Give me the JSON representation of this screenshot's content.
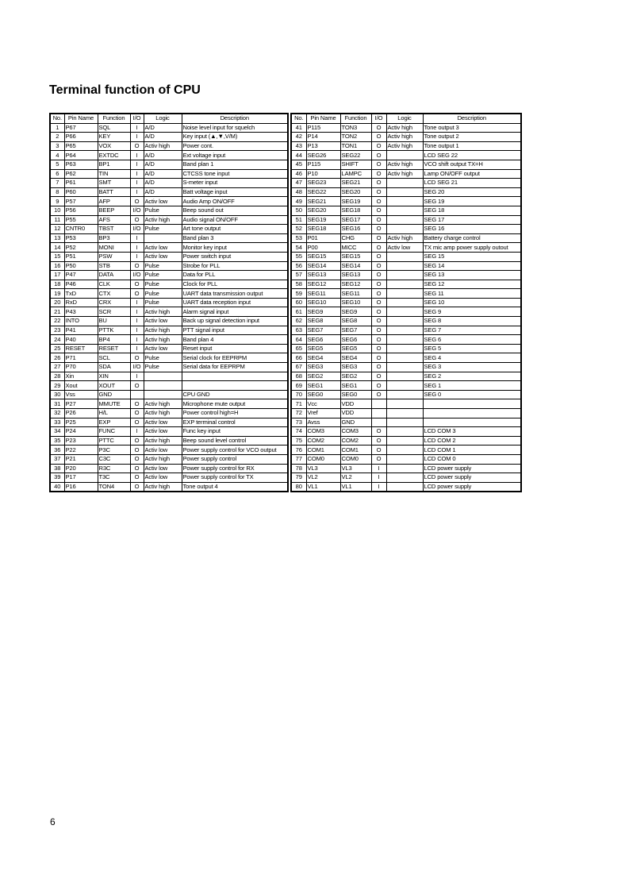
{
  "title": "Terminal function of CPU",
  "page_number": "6",
  "headers": [
    "No.",
    "Pin Name",
    "Function",
    "I/O",
    "Logic",
    "Description"
  ],
  "left_rows": [
    [
      "1",
      "P67",
      "SQL",
      "I",
      "A/D",
      "Noise level input for squelch"
    ],
    [
      "2",
      "P66",
      "KEY",
      "I",
      "A/D",
      "Key input (▲,▼,V/M)"
    ],
    [
      "3",
      "P65",
      "VOX",
      "O",
      "Activ high",
      "Power cont."
    ],
    [
      "4",
      "P64",
      "EXTDC",
      "I",
      "A/D",
      "Ext voltage input"
    ],
    [
      "5",
      "P63",
      "BP1",
      "I",
      "A/D",
      "Band plan 1"
    ],
    [
      "6",
      "P62",
      "TIN",
      "I",
      "A/D",
      "CTCSS tone input"
    ],
    [
      "7",
      "P61",
      "SMT",
      "I",
      "A/D",
      "S-meter input"
    ],
    [
      "8",
      "P60",
      "BATT",
      "I",
      "A/D",
      "Batt voltage input"
    ],
    [
      "9",
      "P57",
      "AFP",
      "O",
      "Activ low",
      "Audio Amp ON/OFF"
    ],
    [
      "10",
      "P56",
      "BEEP",
      "I/O",
      "Pulse",
      "Beep sound out"
    ],
    [
      "11",
      "P55",
      "AFS",
      "O",
      "Activ high",
      "Audio signal ON/OFF"
    ],
    [
      "12",
      "CNTR0",
      "TBST",
      "I/O",
      "Pulse",
      "Art tone output"
    ],
    [
      "13",
      "P53",
      "BP3",
      "I",
      "",
      "Band plan 3"
    ],
    [
      "14",
      "P52",
      "MONI",
      "I",
      "Activ low",
      "Monitor key input"
    ],
    [
      "15",
      "P51",
      "PSW",
      "I",
      "Activ low",
      "Power switch input"
    ],
    [
      "16",
      "P50",
      "STB",
      "O",
      "Pulse",
      "Strobe for PLL"
    ],
    [
      "17",
      "P47",
      "DATA",
      "I/O",
      "Pulse",
      "Data for PLL"
    ],
    [
      "18",
      "P46",
      "CLK",
      "O",
      "Pulse",
      "Clock for PLL"
    ],
    [
      "19",
      "TxD",
      "CTX",
      "O",
      "Pulse",
      "UART data transmission output"
    ],
    [
      "20",
      "RxD",
      "CRX",
      "I",
      "Pulse",
      "UART data reception input"
    ],
    [
      "21",
      "P43",
      "SCR",
      "I",
      "Activ high",
      "Alarm signal input"
    ],
    [
      "22",
      "INTO",
      "BU",
      "I",
      "Activ low",
      "Back up signal detection input"
    ],
    [
      "23",
      "P41",
      "PTTK",
      "I",
      "Activ high",
      "PTT signal input"
    ],
    [
      "24",
      "P40",
      "BP4",
      "I",
      "Activ high",
      "Band plan 4"
    ],
    [
      "25",
      "RESET",
      "RESET",
      "I",
      "Activ low",
      "Reset input"
    ],
    [
      "26",
      "P71",
      "SCL",
      "O",
      "Pulse",
      "Serial clock for EEPRPM"
    ],
    [
      "27",
      "P70",
      "SDA",
      "I/O",
      "Pulse",
      "Serial data for EEPRPM"
    ],
    [
      "28",
      "Xin",
      "XIN",
      "I",
      "",
      ""
    ],
    [
      "29",
      "Xout",
      "XOUT",
      "O",
      "",
      ""
    ],
    [
      "30",
      "Vss",
      "GND",
      "",
      "",
      "CPU GND"
    ],
    [
      "31",
      "P27",
      "MMUTE",
      "O",
      "Activ high",
      "Microphone mute output"
    ],
    [
      "32",
      "P26",
      "H/L",
      "O",
      "Activ high",
      "Power control high=H"
    ],
    [
      "33",
      "P25",
      "EXP",
      "O",
      "Activ low",
      "EXP terminal control"
    ],
    [
      "34",
      "P24",
      "FUNC",
      "I",
      "Activ low",
      "Func key input"
    ],
    [
      "35",
      "P23",
      "PTTC",
      "O",
      "Activ high",
      "Beep sound level control"
    ],
    [
      "36",
      "P22",
      "P3C",
      "O",
      "Activ low",
      "Power supply control for VCO output"
    ],
    [
      "37",
      "P21",
      "C3C",
      "O",
      "Activ high",
      "Power supply control"
    ],
    [
      "38",
      "P20",
      "R3C",
      "O",
      "Activ low",
      "Power supply control for RX"
    ],
    [
      "39",
      "P17",
      "T3C",
      "O",
      "Activ low",
      "Power supply control for TX"
    ],
    [
      "40",
      "P16",
      "TON4",
      "O",
      "Activ high",
      "Tone output 4"
    ]
  ],
  "right_rows": [
    [
      "41",
      "P115",
      "TON3",
      "O",
      "Activ high",
      "Tone output 3"
    ],
    [
      "42",
      "P14",
      "TON2",
      "O",
      "Activ high",
      "Tone output 2"
    ],
    [
      "43",
      "P13",
      "TON1",
      "O",
      "Activ high",
      "Tone output 1"
    ],
    [
      "44",
      "SEG26",
      "SEG22",
      "O",
      "",
      "LCD SEG 22"
    ],
    [
      "45",
      "P115",
      "SHIFT",
      "O",
      "Activ high",
      "VCO shift output TX=H"
    ],
    [
      "46",
      "P10",
      "LAMPC",
      "O",
      "Activ high",
      "Lamp ON/OFF output"
    ],
    [
      "47",
      "SEG23",
      "SEG21",
      "O",
      "",
      "LCD SEG 21"
    ],
    [
      "48",
      "SEG22",
      "SEG20",
      "O",
      "",
      "SEG 20"
    ],
    [
      "49",
      "SEG21",
      "SEG19",
      "O",
      "",
      "SEG 19"
    ],
    [
      "50",
      "SEG20",
      "SEG18",
      "O",
      "",
      "SEG 18"
    ],
    [
      "51",
      "SEG19",
      "SEG17",
      "O",
      "",
      "SEG 17"
    ],
    [
      "52",
      "SEG18",
      "SEG16",
      "O",
      "",
      "SEG 16"
    ],
    [
      "53",
      "P01",
      "CHG",
      "O",
      "Activ high",
      "Battery charge control"
    ],
    [
      "54",
      "P00",
      "MICC",
      "O",
      "Activ low",
      "TX mic amp power supply outout"
    ],
    [
      "55",
      "SEG15",
      "SEG15",
      "O",
      "",
      "SEG 15"
    ],
    [
      "56",
      "SEG14",
      "SEG14",
      "O",
      "",
      "SEG 14"
    ],
    [
      "57",
      "SEG13",
      "SEG13",
      "O",
      "",
      "SEG 13"
    ],
    [
      "58",
      "SEG12",
      "SEG12",
      "O",
      "",
      "SEG 12"
    ],
    [
      "59",
      "SEG11",
      "SEG11",
      "O",
      "",
      "SEG 11"
    ],
    [
      "60",
      "SEG10",
      "SEG10",
      "O",
      "",
      "SEG 10"
    ],
    [
      "61",
      "SEG9",
      "SEG9",
      "O",
      "",
      "SEG 9"
    ],
    [
      "62",
      "SEG8",
      "SEG8",
      "O",
      "",
      "SEG 8"
    ],
    [
      "63",
      "SEG7",
      "SEG7",
      "O",
      "",
      "SEG 7"
    ],
    [
      "64",
      "SEG6",
      "SEG6",
      "O",
      "",
      "SEG 6"
    ],
    [
      "65",
      "SEG5",
      "SEG5",
      "O",
      "",
      "SEG 5"
    ],
    [
      "66",
      "SEG4",
      "SEG4",
      "O",
      "",
      "SEG 4"
    ],
    [
      "67",
      "SEG3",
      "SEG3",
      "O",
      "",
      "SEG 3"
    ],
    [
      "68",
      "SEG2",
      "SEG2",
      "O",
      "",
      "SEG 2"
    ],
    [
      "69",
      "SEG1",
      "SEG1",
      "O",
      "",
      "SEG 1"
    ],
    [
      "70",
      "SEG0",
      "SEG0",
      "O",
      "",
      "SEG 0"
    ],
    [
      "71",
      "Vcc",
      "VDD",
      "",
      "",
      ""
    ],
    [
      "72",
      "Vref",
      "VDD",
      "",
      "",
      ""
    ],
    [
      "73",
      "Avss",
      "GND",
      "",
      "",
      ""
    ],
    [
      "74",
      "COM3",
      "COM3",
      "O",
      "",
      "LCD COM 3"
    ],
    [
      "75",
      "COM2",
      "COM2",
      "O",
      "",
      "LCD COM 2"
    ],
    [
      "76",
      "COM1",
      "COM1",
      "O",
      "",
      "LCD COM 1"
    ],
    [
      "77",
      "COM0",
      "COM0",
      "O",
      "",
      "LCD COM 0"
    ],
    [
      "78",
      "VL3",
      "VL3",
      "I",
      "",
      "LCD power supply"
    ],
    [
      "79",
      "VL2",
      "VL2",
      "I",
      "",
      "LCD power supply"
    ],
    [
      "80",
      "VL1",
      "VL1",
      "I",
      "",
      "LCD power supply"
    ]
  ]
}
